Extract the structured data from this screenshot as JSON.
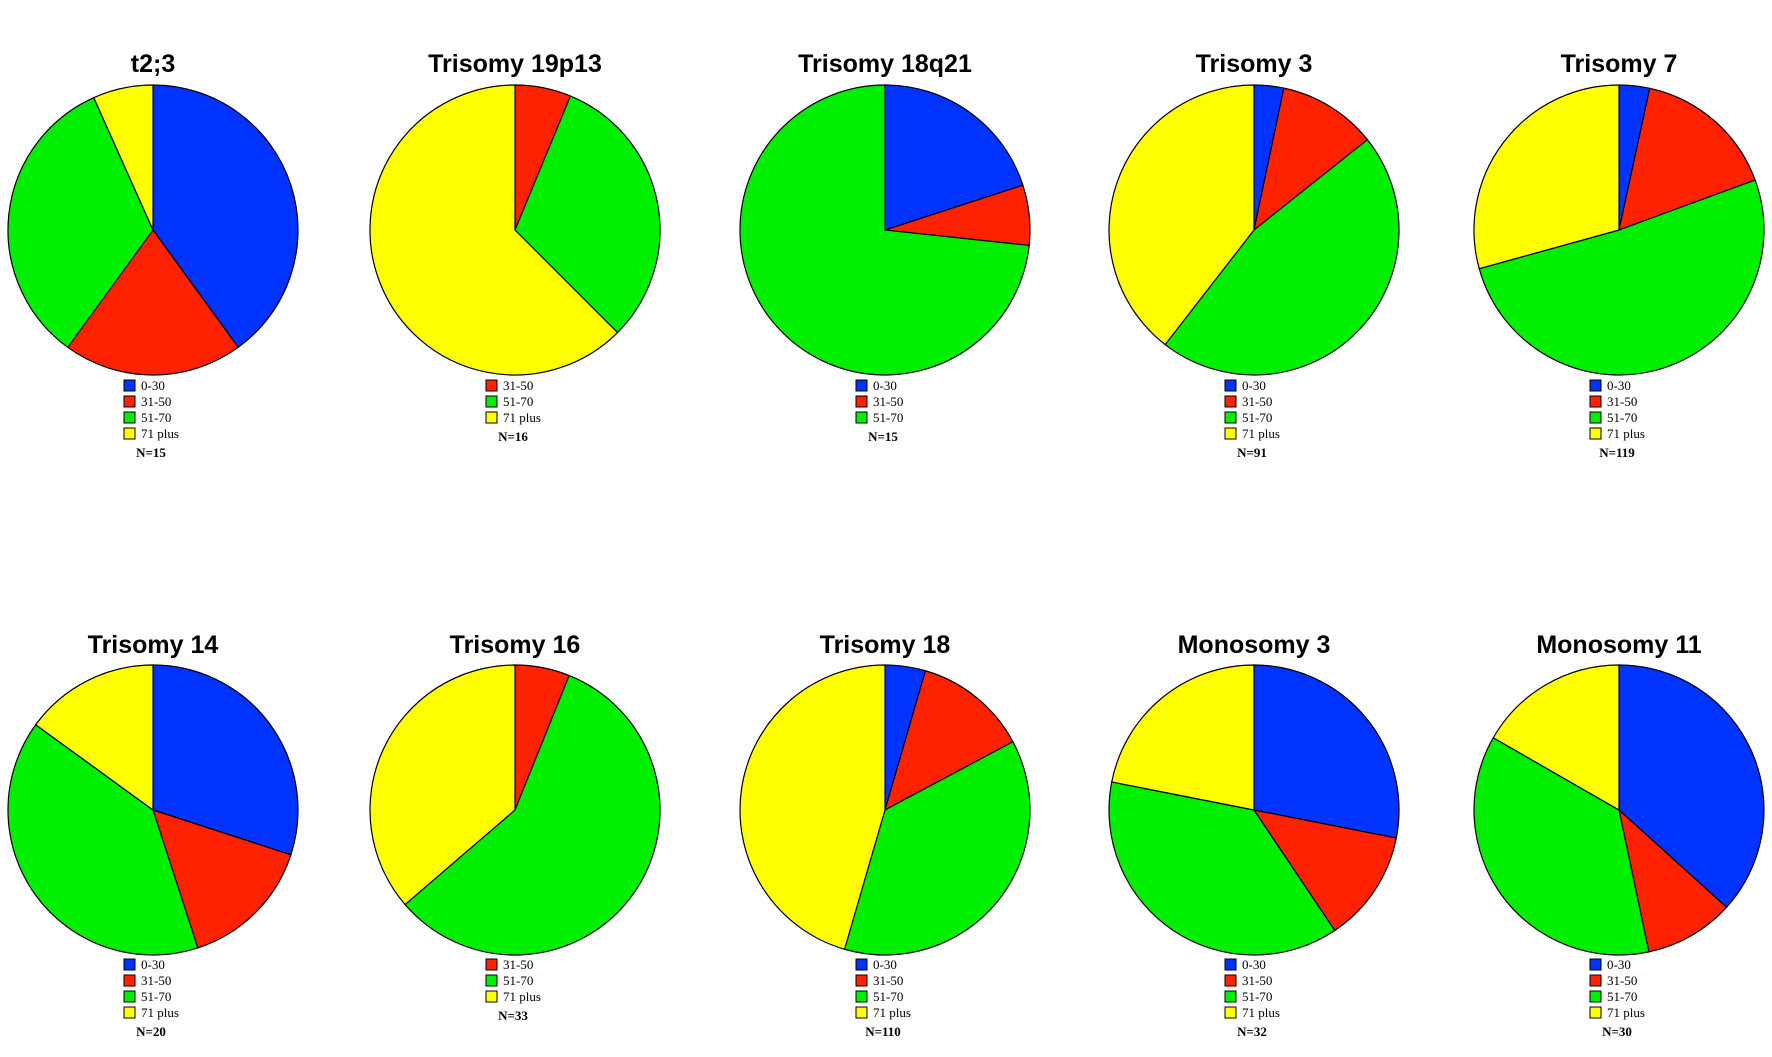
{
  "colors": {
    "0-30": "#0033ff",
    "31-50": "#ff2200",
    "51-70": "#00ee00",
    "71 plus": "#ffff00",
    "outline": "#000000"
  },
  "chart_data": [
    {
      "type": "pie",
      "title": "t2;3",
      "n_label": "N=15",
      "categories": [
        "0-30",
        "31-50",
        "51-70",
        "71 plus"
      ],
      "values": [
        40,
        20,
        33.3,
        6.7
      ]
    },
    {
      "type": "pie",
      "title": "Trisomy 19p13",
      "n_label": "N=16",
      "categories": [
        "31-50",
        "51-70",
        "71 plus"
      ],
      "values": [
        6.25,
        31.25,
        62.5
      ]
    },
    {
      "type": "pie",
      "title": "Trisomy 18q21",
      "n_label": "N=15",
      "categories": [
        "0-30",
        "31-50",
        "51-70"
      ],
      "values": [
        20,
        6.7,
        73.3
      ]
    },
    {
      "type": "pie",
      "title": "Trisomy 3",
      "n_label": "N=91",
      "categories": [
        "0-30",
        "31-50",
        "51-70",
        "71 plus"
      ],
      "values": [
        3.3,
        11,
        46.2,
        39.5
      ]
    },
    {
      "type": "pie",
      "title": "Trisomy 7",
      "n_label": "N=119",
      "categories": [
        "0-30",
        "31-50",
        "51-70",
        "71 plus"
      ],
      "values": [
        3.4,
        16,
        51.3,
        29.3
      ]
    },
    {
      "type": "pie",
      "title": "Trisomy 14",
      "n_label": "N=20",
      "categories": [
        "0-30",
        "31-50",
        "51-70",
        "71 plus"
      ],
      "values": [
        30,
        15,
        40,
        15
      ]
    },
    {
      "type": "pie",
      "title": "Trisomy 16",
      "n_label": "N=33",
      "categories": [
        "31-50",
        "51-70",
        "71 plus"
      ],
      "values": [
        6.1,
        57.6,
        36.3
      ]
    },
    {
      "type": "pie",
      "title": "Trisomy 18",
      "n_label": "N=110",
      "categories": [
        "0-30",
        "31-50",
        "51-70",
        "71 plus"
      ],
      "values": [
        4.5,
        12.7,
        37.3,
        45.5
      ]
    },
    {
      "type": "pie",
      "title": "Monosomy 3",
      "n_label": "N=32",
      "categories": [
        "0-30",
        "31-50",
        "51-70",
        "71 plus"
      ],
      "values": [
        28.1,
        12.5,
        37.5,
        21.9
      ]
    },
    {
      "type": "pie",
      "title": "Monosomy 11",
      "n_label": "N=30",
      "categories": [
        "0-30",
        "31-50",
        "51-70",
        "71 plus"
      ],
      "values": [
        36.7,
        10,
        36.6,
        16.7
      ]
    }
  ]
}
